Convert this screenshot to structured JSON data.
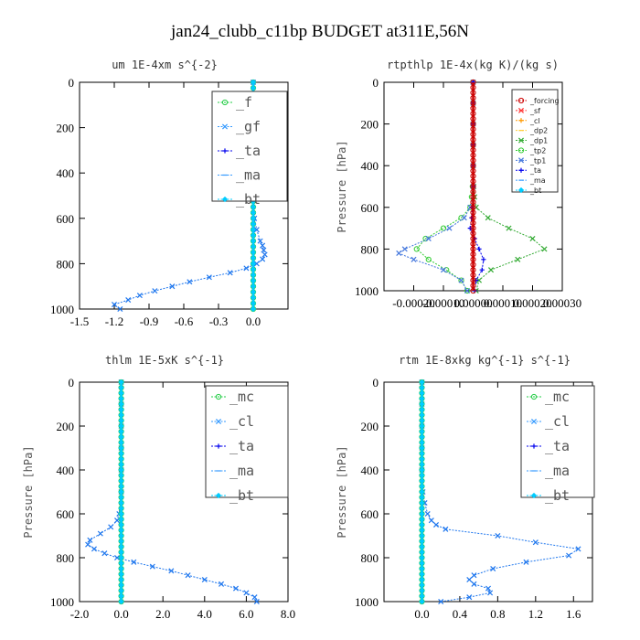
{
  "figure": {
    "title": "jan24_clubb_c11bp  BUDGET at311E,56N"
  },
  "colors": {
    "forcing": "#cc0000",
    "sf": "#ff3333",
    "cl_orange": "#ff9900",
    "dp2": "#ffcc33",
    "dp1": "#33aa33",
    "tp2": "#33cc33",
    "tp1": "#4477dd",
    "ta": "#0000ee",
    "ma": "#3399ff",
    "bt": "#00ccff",
    "green": "#22cc44",
    "blue": "#1f77ee"
  },
  "chart_data": [
    {
      "type": "line",
      "title": "um  1E-4xm s^{-2}",
      "xlabel": "",
      "ylabel": "",
      "xlim": [
        -1.5,
        0.3
      ],
      "ylim": [
        1000,
        0
      ],
      "xticks": [
        "-1.5",
        "-1.2",
        "-0.9",
        "-0.6",
        "-0.3",
        "0.0"
      ],
      "xtick_values": [
        -1.5,
        -1.2,
        -0.9,
        -0.6,
        -0.3,
        0.0
      ],
      "yticks": [
        "0",
        "200",
        "400",
        "600",
        "800",
        "1000"
      ],
      "ytick_values": [
        0,
        200,
        400,
        600,
        800,
        1000
      ],
      "legend": {
        "placement": "top-right",
        "style": "large",
        "entries": [
          {
            "label": "_f",
            "color": "#22cc44",
            "marker": "o"
          },
          {
            "label": "_gf",
            "color": "#3399ff",
            "marker": "x"
          },
          {
            "label": "_ta",
            "color": "#0000ee",
            "marker": "+"
          },
          {
            "label": "_ma",
            "color": "#3399ff",
            "marker": "-"
          },
          {
            "label": "_bt",
            "color": "#00ccff",
            "marker": "d"
          }
        ]
      },
      "series": [
        {
          "color": "#22cc44",
          "marker": "o",
          "y": [
            0,
            100,
            200,
            300,
            400,
            500,
            600,
            700,
            800,
            900,
            1000
          ],
          "x": [
            0,
            0,
            0,
            0,
            0,
            0,
            0,
            0,
            0,
            0,
            0
          ]
        },
        {
          "color": "#1f77ee",
          "marker": "x",
          "y": [
            0,
            100,
            200,
            300,
            400,
            500,
            600,
            650,
            700,
            720,
            740,
            760,
            780,
            800,
            820,
            840,
            860,
            880,
            900,
            920,
            940,
            960,
            980,
            1000
          ],
          "x": [
            0,
            0,
            0,
            0,
            0,
            0,
            0.01,
            0.03,
            0.06,
            0.08,
            0.09,
            0.1,
            0.08,
            0.03,
            -0.06,
            -0.2,
            -0.38,
            -0.55,
            -0.7,
            -0.85,
            -0.98,
            -1.08,
            -1.2,
            -1.15
          ]
        },
        {
          "color": "#00ccff",
          "marker": "d",
          "y": [
            0,
            100,
            200,
            300,
            400,
            500,
            600,
            700,
            800,
            900,
            1000
          ],
          "x": [
            0,
            0,
            0,
            0,
            0,
            0,
            0,
            0,
            0,
            0,
            0
          ]
        }
      ]
    },
    {
      "type": "line",
      "title": "rtpthlp  1E-4x(kg K)/(kg s)",
      "xlabel": "",
      "ylabel": "Pressure [hPa]",
      "xlim": [
        -0.0003,
        0.0003
      ],
      "ylim": [
        1000,
        0
      ],
      "xticks": [
        "-0.00020",
        "-0.00010",
        "0.00000",
        "0.00010",
        "0.00020",
        "0.00030"
      ],
      "xtick_values": [
        -0.0002,
        -0.0001,
        0.0,
        0.0001,
        0.0002,
        0.0003
      ],
      "yticks": [
        "0",
        "200",
        "400",
        "600",
        "800",
        "1000"
      ],
      "ytick_values": [
        0,
        200,
        400,
        600,
        800,
        1000
      ],
      "legend": {
        "placement": "top-right",
        "style": "small",
        "entries": [
          {
            "label": "_forcing",
            "color": "#cc0000",
            "marker": "o"
          },
          {
            "label": "_sf",
            "color": "#ff3333",
            "marker": "x"
          },
          {
            "label": "_cl",
            "color": "#ff9900",
            "marker": "+"
          },
          {
            "label": "_dp2",
            "color": "#ffcc33",
            "marker": "-"
          },
          {
            "label": "_dp1",
            "color": "#33aa33",
            "marker": "x"
          },
          {
            "label": "_tp2",
            "color": "#33cc33",
            "marker": "o"
          },
          {
            "label": "_tp1",
            "color": "#4477dd",
            "marker": "x"
          },
          {
            "label": "_ta",
            "color": "#0000ee",
            "marker": "+"
          },
          {
            "label": "_ma",
            "color": "#3399ff",
            "marker": "-"
          },
          {
            "label": "_bt",
            "color": "#00ccff",
            "marker": "d"
          }
        ]
      },
      "series": [
        {
          "color": "#33aa33",
          "marker": "x",
          "y": [
            0,
            100,
            200,
            300,
            400,
            500,
            550,
            600,
            650,
            700,
            750,
            800,
            850,
            900,
            950,
            1000
          ],
          "x": [
            0,
            0,
            0,
            0,
            0,
            2e-06,
            5e-06,
            1e-05,
            5e-05,
            0.00012,
            0.0002,
            0.00024,
            0.00015,
            6e-05,
            2e-05,
            1e-05
          ]
        },
        {
          "color": "#33cc33",
          "marker": "o",
          "y": [
            0,
            100,
            200,
            300,
            400,
            500,
            550,
            600,
            650,
            700,
            750,
            800,
            850,
            900,
            950,
            1000
          ],
          "x": [
            0,
            0,
            0,
            0,
            0,
            -2e-06,
            -5e-06,
            -1e-05,
            -4e-05,
            -0.0001,
            -0.00016,
            -0.00019,
            -0.00015,
            -9e-05,
            -4e-05,
            -2e-05
          ]
        },
        {
          "color": "#4477dd",
          "marker": "x",
          "y": [
            0,
            100,
            200,
            300,
            400,
            500,
            600,
            650,
            700,
            750,
            800,
            820,
            850,
            900,
            950,
            1000
          ],
          "x": [
            0,
            0,
            0,
            0,
            0,
            0,
            -1e-05,
            -3e-05,
            -8e-05,
            -0.00015,
            -0.00023,
            -0.00025,
            -0.0002,
            -0.0001,
            -4e-05,
            -2e-05
          ]
        },
        {
          "color": "#0000ee",
          "marker": "+",
          "y": [
            0,
            100,
            200,
            300,
            400,
            500,
            600,
            650,
            700,
            750,
            800,
            850,
            900,
            950,
            1000
          ],
          "x": [
            0,
            0,
            0,
            0,
            0,
            0,
            -3e-06,
            -5e-06,
            -1e-05,
            5e-06,
            2e-05,
            3.5e-05,
            3e-05,
            1e-05,
            5e-06
          ]
        },
        {
          "color": "#cc0000",
          "marker": "o",
          "y": [
            0,
            100,
            200,
            300,
            400,
            500,
            600,
            700,
            800,
            900,
            1000
          ],
          "x": [
            0,
            0,
            0,
            0,
            0,
            0,
            0,
            0,
            0,
            0,
            0
          ]
        }
      ]
    },
    {
      "type": "line",
      "title": "thlm  1E-5xK s^{-1}",
      "xlabel": "",
      "ylabel": "Pressure [hPa]",
      "xlim": [
        -2.0,
        8.0
      ],
      "ylim": [
        1000,
        0
      ],
      "xticks": [
        "-2.0",
        "0.0",
        "2.0",
        "4.0",
        "6.0",
        "8.0"
      ],
      "xtick_values": [
        -2.0,
        0.0,
        2.0,
        4.0,
        6.0,
        8.0
      ],
      "yticks": [
        "0",
        "200",
        "400",
        "600",
        "800",
        "1000"
      ],
      "ytick_values": [
        0,
        200,
        400,
        600,
        800,
        1000
      ],
      "legend": {
        "placement": "top-right",
        "style": "large",
        "entries": [
          {
            "label": "_mc",
            "color": "#22cc44",
            "marker": "o"
          },
          {
            "label": "_cl",
            "color": "#3399ff",
            "marker": "x"
          },
          {
            "label": "_ta",
            "color": "#0000ee",
            "marker": "+"
          },
          {
            "label": "_ma",
            "color": "#3399ff",
            "marker": "-"
          },
          {
            "label": "_bt",
            "color": "#00ccff",
            "marker": "d"
          }
        ]
      },
      "series": [
        {
          "color": "#1f77ee",
          "marker": "x",
          "y": [
            0,
            100,
            200,
            300,
            400,
            500,
            600,
            630,
            660,
            690,
            720,
            740,
            760,
            780,
            800,
            820,
            840,
            860,
            880,
            900,
            920,
            940,
            960,
            980,
            1000
          ],
          "x": [
            0,
            0,
            0,
            0,
            0,
            0,
            -0.1,
            -0.2,
            -0.5,
            -1.0,
            -1.5,
            -1.6,
            -1.3,
            -0.8,
            -0.2,
            0.6,
            1.5,
            2.4,
            3.2,
            4.0,
            4.8,
            5.5,
            6.0,
            6.4,
            6.5
          ]
        },
        {
          "color": "#22cc44",
          "marker": "o",
          "y": [
            0,
            100,
            200,
            300,
            400,
            500,
            600,
            700,
            800,
            900,
            1000
          ],
          "x": [
            0,
            0,
            0,
            0,
            0,
            0,
            0,
            0,
            0,
            0,
            0
          ]
        },
        {
          "color": "#00ccff",
          "marker": "d",
          "y": [
            0,
            100,
            200,
            300,
            400,
            500,
            600,
            700,
            800,
            900,
            1000
          ],
          "x": [
            0,
            0,
            0,
            0,
            0,
            0,
            0,
            0,
            0,
            0,
            0
          ]
        }
      ]
    },
    {
      "type": "line",
      "title": "rtm  1E-8xkg kg^{-1} s^{-1}",
      "xlabel": "",
      "ylabel": "Pressure [hPa]",
      "xlim": [
        -0.4,
        1.8
      ],
      "ylim": [
        1000,
        0
      ],
      "xticks": [
        "0.0",
        "0.4",
        "0.8",
        "1.2",
        "1.6"
      ],
      "xtick_values": [
        0.0,
        0.4,
        0.8,
        1.2,
        1.6
      ],
      "yticks": [
        "0",
        "200",
        "400",
        "600",
        "800",
        "1000"
      ],
      "ytick_values": [
        0,
        200,
        400,
        600,
        800,
        1000
      ],
      "legend": {
        "placement": "top-right",
        "style": "large",
        "entries": [
          {
            "label": "_mc",
            "color": "#22cc44",
            "marker": "o"
          },
          {
            "label": "_cl",
            "color": "#3399ff",
            "marker": "x"
          },
          {
            "label": "_ta",
            "color": "#0000ee",
            "marker": "+"
          },
          {
            "label": "_ma",
            "color": "#3399ff",
            "marker": "-"
          },
          {
            "label": "_bt",
            "color": "#00ccff",
            "marker": "d"
          }
        ]
      },
      "series": [
        {
          "color": "#1f77ee",
          "marker": "x",
          "y": [
            0,
            100,
            200,
            300,
            400,
            500,
            550,
            600,
            630,
            650,
            670,
            700,
            730,
            760,
            790,
            820,
            850,
            880,
            900,
            920,
            940,
            960,
            980,
            1000
          ],
          "x": [
            0,
            0,
            0,
            0,
            0,
            0.01,
            0.03,
            0.06,
            0.1,
            0.15,
            0.25,
            0.8,
            1.2,
            1.65,
            1.55,
            1.1,
            0.75,
            0.55,
            0.5,
            0.55,
            0.7,
            0.72,
            0.5,
            0.2
          ]
        },
        {
          "color": "#22cc44",
          "marker": "o",
          "y": [
            0,
            100,
            200,
            300,
            400,
            500,
            600,
            700,
            800,
            900,
            1000
          ],
          "x": [
            0,
            0,
            0,
            0,
            0,
            0,
            0,
            0,
            0,
            0,
            0
          ]
        },
        {
          "color": "#00ccff",
          "marker": "d",
          "y": [
            0,
            100,
            200,
            300,
            400,
            500,
            600,
            700,
            800,
            900,
            1000
          ],
          "x": [
            0,
            0,
            0,
            0,
            0,
            0,
            0,
            0,
            0,
            0,
            0
          ]
        }
      ]
    }
  ]
}
